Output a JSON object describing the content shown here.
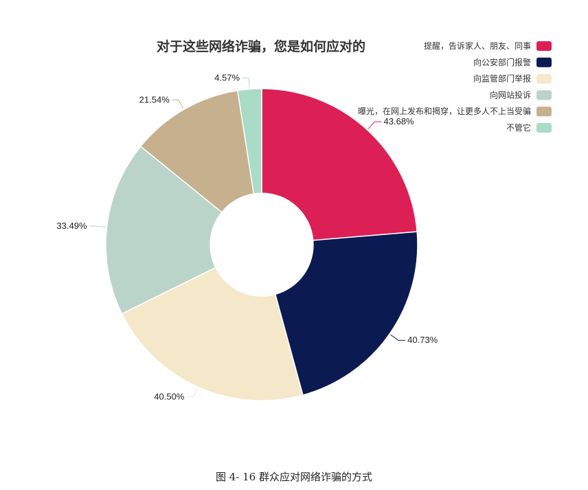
{
  "chart_data": {
    "type": "pie",
    "title": "对于这些网络诈骗，您是如何应对的",
    "categories": [
      "提醒，告诉家人、朋友、同事",
      "向公安部门报警",
      "向监管部门举报",
      "向网站投诉",
      "曝光，在网上发布和揭穿，让更多人不上当受骗",
      "不管它"
    ],
    "values": [
      43.68,
      40.73,
      40.5,
      33.49,
      21.54,
      4.57
    ],
    "labels": [
      "43.68%",
      "40.73%",
      "40.50%",
      "33.49%",
      "21.54%",
      "4.57%"
    ],
    "colors": [
      "#DC1F54",
      "#0C1A52",
      "#F5E8CA",
      "#BAD4CA",
      "#C6B08E",
      "#A9DBC7"
    ],
    "inner_radius_ratio": 0.33,
    "legend_position": "top-right"
  },
  "caption": "图 4- 16  群众应对网络诈骗的方式"
}
